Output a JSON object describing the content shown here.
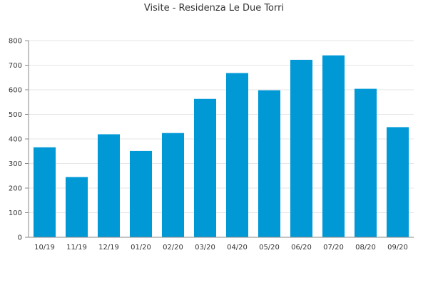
{
  "chart_data": {
    "type": "bar",
    "title": "Visite - Residenza Le Due Torri",
    "xlabel": "",
    "ylabel": "",
    "categories": [
      "10/19",
      "11/19",
      "12/19",
      "01/20",
      "02/20",
      "03/20",
      "04/20",
      "05/20",
      "06/20",
      "07/20",
      "08/20",
      "09/20"
    ],
    "values": [
      366,
      245,
      419,
      351,
      424,
      563,
      668,
      598,
      722,
      740,
      604,
      448
    ],
    "ylim": [
      0,
      800
    ],
    "yticks": [
      0,
      100,
      200,
      300,
      400,
      500,
      600,
      700,
      800
    ],
    "grid": true,
    "legend": "none",
    "bar_color": "#0099d6"
  }
}
